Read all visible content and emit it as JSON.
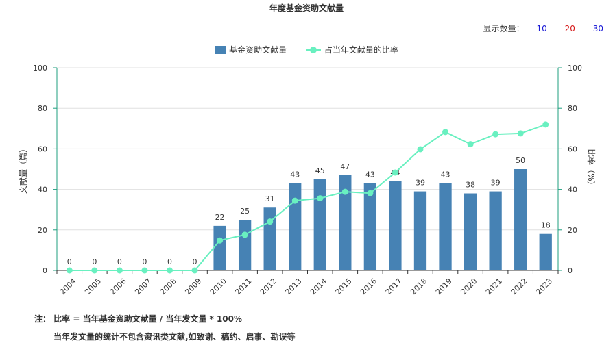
{
  "title": "年度基金资助文献量",
  "count_control": {
    "label": "显示数量：",
    "options": [
      "10",
      "20",
      "30"
    ]
  },
  "legend": {
    "bar": "基金资助文献量",
    "line": "占当年文献量的比率"
  },
  "note": {
    "line1": "注： 比率 = 当年基金资助文献量 / 当年发文量 * 100%",
    "line2": "当年发文量的统计不包含资讯类文献,如致谢、稿约、启事、勘误等"
  },
  "colors": {
    "bar": "#4682b4",
    "line": "#69f0c0",
    "axis": "#1f9f7f"
  },
  "chart_data": {
    "type": "bar",
    "categories": [
      "2004",
      "2005",
      "2006",
      "2007",
      "2008",
      "2009",
      "2010",
      "2011",
      "2012",
      "2013",
      "2014",
      "2015",
      "2016",
      "2017",
      "2018",
      "2019",
      "2020",
      "2021",
      "2022",
      "2023"
    ],
    "series": [
      {
        "name": "基金资助文献量",
        "type": "bar",
        "axis": "left",
        "values": [
          0,
          0,
          0,
          0,
          0,
          0,
          22,
          25,
          31,
          43,
          45,
          47,
          43,
          44,
          39,
          43,
          38,
          39,
          50,
          18
        ]
      },
      {
        "name": "占当年文献量的比率",
        "type": "line",
        "axis": "right",
        "values": [
          0,
          0,
          0,
          0,
          0,
          0,
          14.8,
          17.6,
          24.1,
          34.4,
          35.6,
          38.8,
          38.1,
          48.3,
          59.8,
          68.3,
          62.3,
          67.2,
          67.6,
          72
        ]
      }
    ],
    "ylabel": "文献量（篇）",
    "y2label": "比率（%）",
    "ylim": [
      0,
      100
    ],
    "y2lim": [
      0,
      100
    ],
    "yticks": [
      0,
      20,
      40,
      60,
      80,
      100
    ],
    "grid": true,
    "legend_position": "top-center"
  }
}
